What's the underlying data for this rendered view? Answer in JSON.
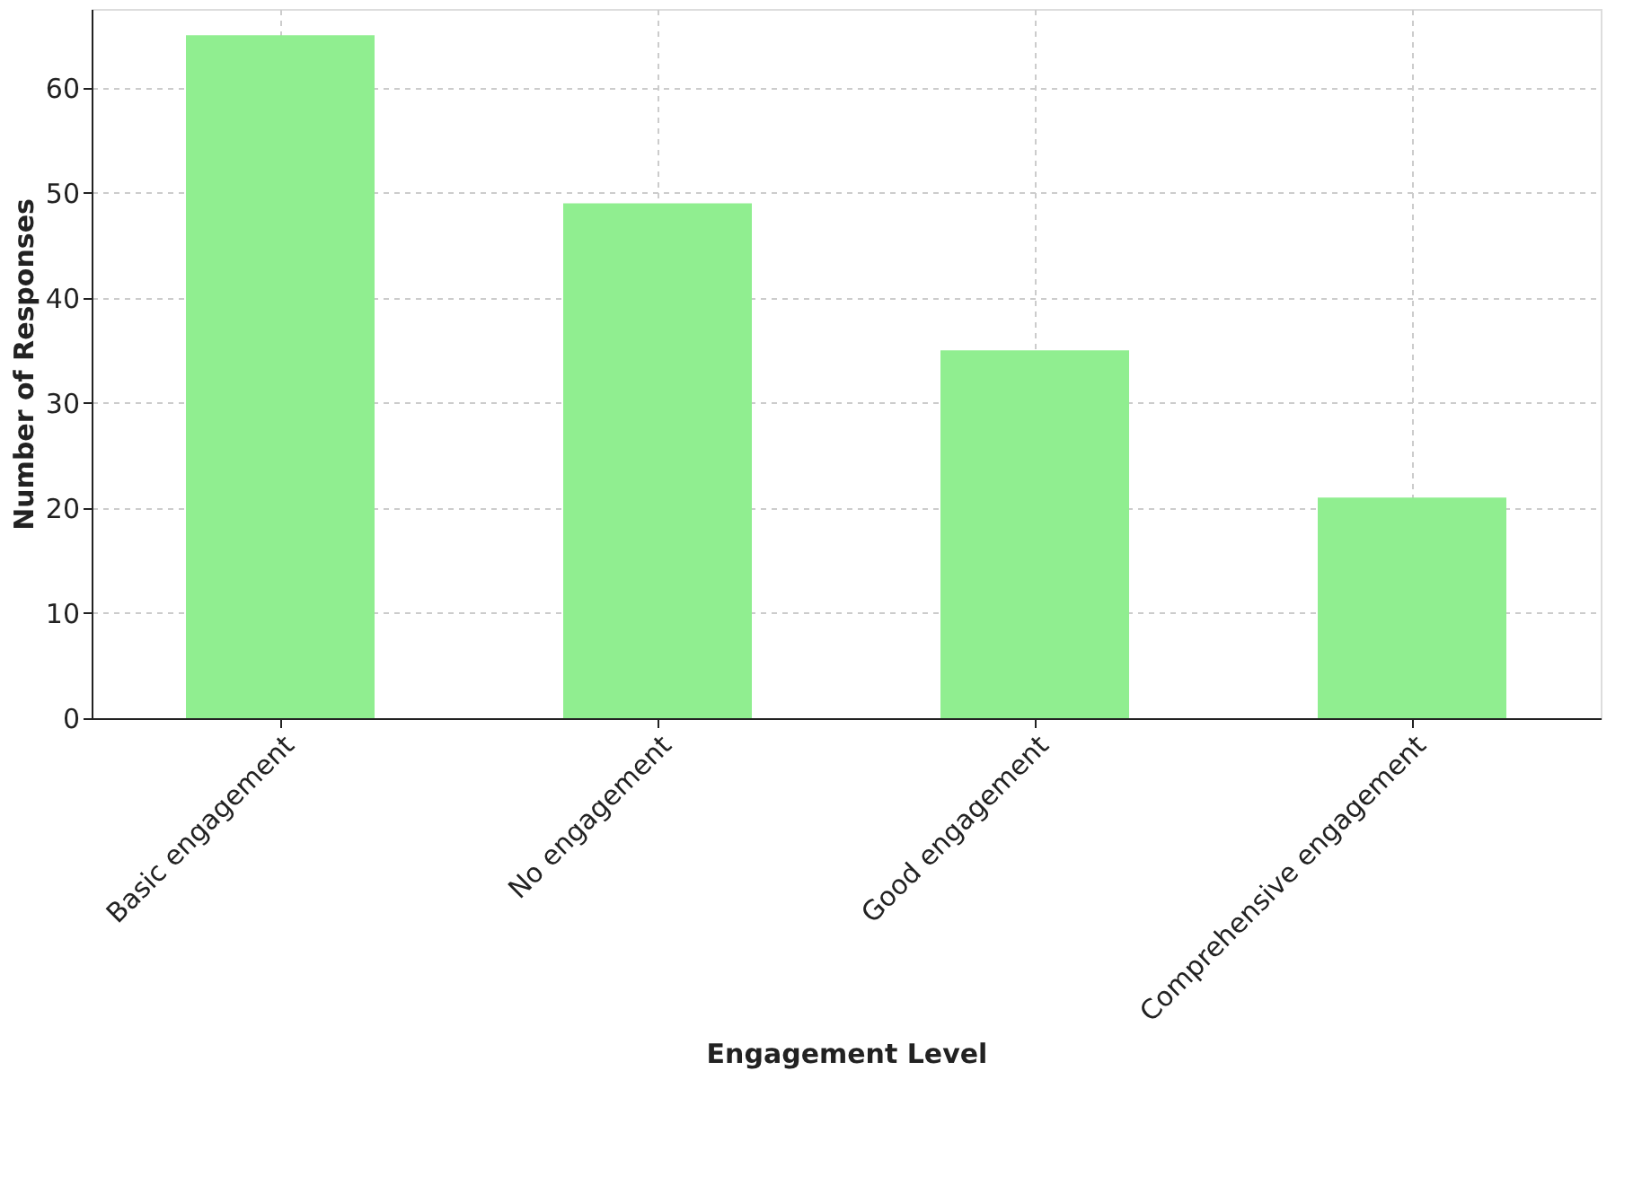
{
  "chart_data": {
    "type": "bar",
    "xlabel": "Engagement Level",
    "ylabel": "Number of Responses",
    "categories": [
      "Basic engagement",
      "No engagement",
      "Good engagement",
      "Comprehensive engagement"
    ],
    "values": [
      65,
      49,
      35,
      21
    ],
    "color": "#90ee90",
    "ylim": [
      0,
      67.5
    ],
    "yticks": [
      0,
      10,
      20,
      30,
      40,
      50,
      60
    ],
    "grid": true
  }
}
